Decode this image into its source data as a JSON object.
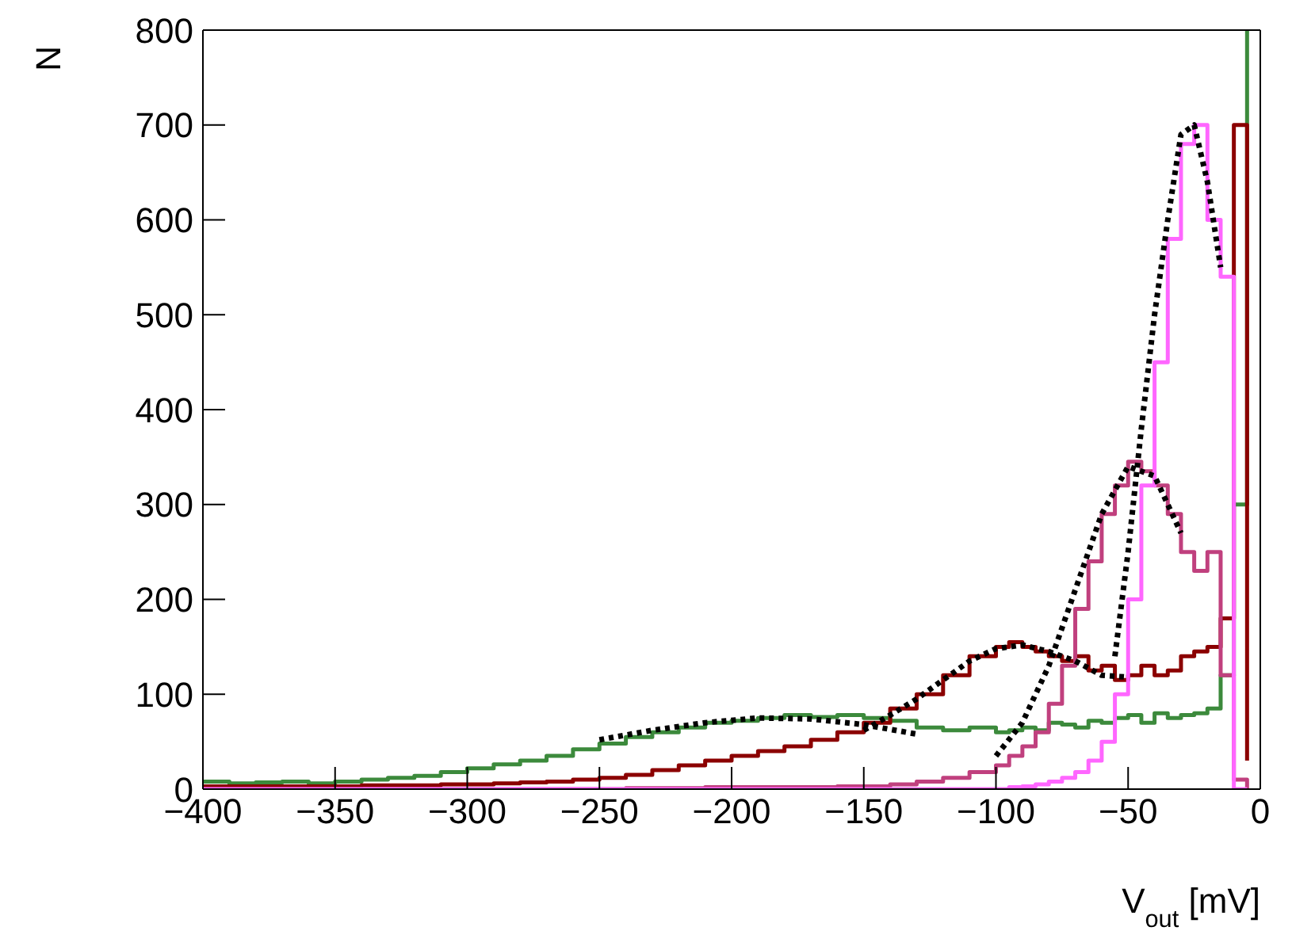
{
  "chart_data": {
    "type": "step",
    "xlabel": "V$_{out}$ [mV]",
    "ylabel": "N",
    "x": [
      -400,
      -390,
      -380,
      -370,
      -360,
      -350,
      -340,
      -330,
      -320,
      -310,
      -300,
      -290,
      -280,
      -270,
      -260,
      -250,
      -240,
      -230,
      -220,
      -210,
      -200,
      -190,
      -180,
      -170,
      -160,
      -150,
      -140,
      -130,
      -120,
      -110,
      -100,
      -95,
      -90,
      -85,
      -80,
      -75,
      -70,
      -65,
      -60,
      -55,
      -50,
      -45,
      -40,
      -35,
      -30,
      -25,
      -20,
      -15,
      -10,
      -5
    ],
    "series": [
      {
        "color": "#3c8a3c",
        "values": [
          8,
          6,
          7,
          8,
          6,
          8,
          10,
          12,
          14,
          18,
          22,
          26,
          30,
          35,
          42,
          48,
          55,
          60,
          65,
          70,
          72,
          75,
          78,
          76,
          78,
          75,
          72,
          65,
          62,
          65,
          60,
          62,
          65,
          62,
          70,
          68,
          65,
          72,
          70,
          75,
          78,
          70,
          80,
          75,
          78,
          80,
          85,
          120,
          300,
          800
        ]
      },
      {
        "color": "#8b0000",
        "values": [
          3,
          3,
          3,
          3,
          3,
          3,
          4,
          4,
          4,
          5,
          5,
          6,
          7,
          8,
          10,
          12,
          15,
          20,
          25,
          30,
          35,
          40,
          45,
          52,
          60,
          70,
          85,
          100,
          120,
          140,
          150,
          155,
          150,
          145,
          140,
          135,
          140,
          125,
          130,
          115,
          120,
          130,
          120,
          125,
          140,
          145,
          150,
          180,
          700,
          30
        ]
      },
      {
        "color": "#c0407e",
        "values": [
          0,
          0,
          0,
          0,
          0,
          0,
          0,
          0,
          0,
          0,
          0,
          0,
          0,
          0,
          0,
          0,
          1,
          1,
          1,
          2,
          2,
          2,
          2,
          2,
          3,
          3,
          5,
          8,
          12,
          18,
          25,
          35,
          45,
          60,
          90,
          130,
          190,
          240,
          290,
          320,
          345,
          335,
          320,
          290,
          250,
          230,
          250,
          120,
          10,
          0
        ]
      },
      {
        "color": "#ff66ff",
        "values": [
          0,
          0,
          0,
          0,
          0,
          0,
          0,
          0,
          0,
          0,
          0,
          0,
          0,
          0,
          0,
          0,
          0,
          0,
          0,
          0,
          0,
          0,
          0,
          0,
          0,
          0,
          0,
          0,
          0,
          0,
          0,
          2,
          3,
          5,
          8,
          12,
          18,
          30,
          50,
          100,
          200,
          320,
          450,
          580,
          680,
          700,
          600,
          540,
          0,
          0
        ]
      },
      {
        "type": "line",
        "color": "#000000",
        "line_style": "dotted",
        "x": [
          -250,
          -230,
          -210,
          -190,
          -170,
          -150,
          -130
        ],
        "values": [
          52,
          62,
          70,
          75,
          74,
          68,
          58
        ]
      },
      {
        "type": "line",
        "color": "#000000",
        "line_style": "dotted",
        "x": [
          -150,
          -140,
          -130,
          -120,
          -110,
          -100,
          -90,
          -80,
          -70,
          -60,
          -50
        ],
        "values": [
          62,
          78,
          95,
          115,
          135,
          148,
          152,
          145,
          135,
          120,
          118
        ]
      },
      {
        "type": "line",
        "color": "#000000",
        "line_style": "dotted",
        "x": [
          -100,
          -90,
          -80,
          -70,
          -60,
          -50,
          -40,
          -30
        ],
        "values": [
          35,
          70,
          130,
          210,
          290,
          340,
          330,
          270
        ]
      },
      {
        "type": "line",
        "color": "#000000",
        "line_style": "dotted",
        "x": [
          -55,
          -50,
          -45,
          -40,
          -35,
          -30,
          -25,
          -20,
          -15
        ],
        "values": [
          140,
          250,
          380,
          500,
          600,
          690,
          700,
          640,
          550
        ]
      }
    ],
    "xlim": [
      -400,
      0
    ],
    "xticks": [
      -400,
      -350,
      -300,
      -250,
      -200,
      -150,
      -100,
      -50,
      0
    ],
    "ylim": [
      0,
      800
    ],
    "yticks": [
      0,
      100,
      200,
      300,
      400,
      500,
      600,
      700,
      800
    ],
    "legend": false,
    "marker": "none"
  }
}
